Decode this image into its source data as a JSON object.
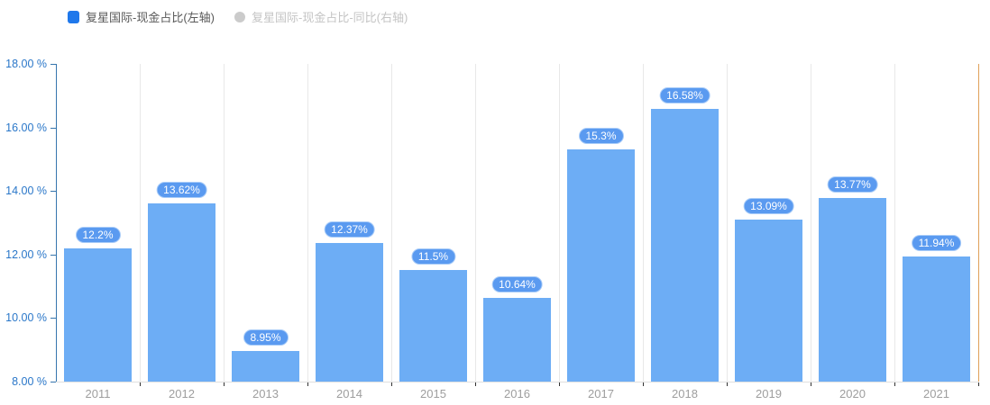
{
  "legend": {
    "items": [
      {
        "label": "复星国际-现金占比(左轴)",
        "marker": "square",
        "marker_color": "#1f78eb",
        "text_color": "#595959",
        "active": true
      },
      {
        "label": "复星国际-现金占比-同比(右轴)",
        "marker": "circle",
        "marker_color": "#cbcbcb",
        "text_color": "#c4c4c4",
        "active": false
      }
    ]
  },
  "chart_data": {
    "type": "bar",
    "title": "",
    "xlabel": "",
    "ylabel": "",
    "categories": [
      "2011",
      "2012",
      "2013",
      "2014",
      "2015",
      "2016",
      "2017",
      "2018",
      "2019",
      "2020",
      "2021"
    ],
    "series": [
      {
        "name": "复星国际-现金占比(左轴)",
        "axis": "left",
        "values": [
          12.2,
          13.62,
          8.95,
          12.37,
          11.5,
          10.64,
          15.3,
          16.58,
          13.09,
          13.77,
          11.94
        ],
        "labels": [
          "12.2%",
          "13.62%",
          "8.95%",
          "12.37%",
          "11.5%",
          "10.64%",
          "15.3%",
          "16.58%",
          "13.09%",
          "13.77%",
          "11.94%"
        ]
      }
    ],
    "left_axis": {
      "min": 8,
      "max": 18,
      "step": 2,
      "tick_labels_top_to_bottom": [
        "18.00 %",
        "16.00 %",
        "14.00 %",
        "12.00 %",
        "10.00 %",
        "8.00 %"
      ],
      "color": "#3675ad",
      "label_color": "#2a77c9"
    },
    "right_axis": {
      "color": "#e0a058",
      "tick_labels": []
    },
    "grid": "vertical-category-boundaries",
    "legend_position": "top-left",
    "colors": {
      "bar": "#6dadf5",
      "badge_bg": "#5a9af0",
      "badge_border": "#a9ccf8",
      "badge_text": "#ffffff",
      "gridline": "#e8e8e8",
      "x_axis_line": "#e0e0e0",
      "x_tick": "#333333",
      "x_label": "#9e9e9e"
    }
  }
}
